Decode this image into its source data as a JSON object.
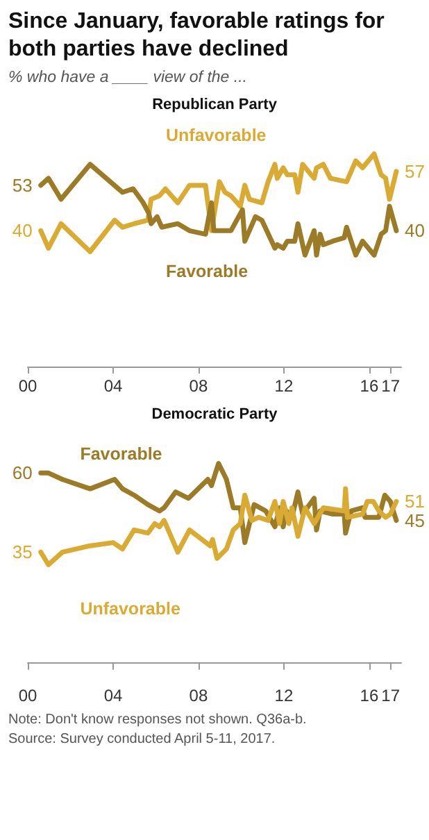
{
  "chart_data": [
    {
      "type": "line",
      "title": "Since January, favorable ratings for both parties have declined",
      "subtitle": "% who have a ____ view of the ...",
      "annotations": [
        "Republican Party"
      ],
      "xlim": [
        2000,
        2017.5
      ],
      "xticks": [
        {
          "value": 2000,
          "label": "00"
        },
        {
          "value": 2004,
          "label": "04"
        },
        {
          "value": 2008,
          "label": "08"
        },
        {
          "value": 2012,
          "label": "12"
        },
        {
          "value": 2016,
          "label": "16"
        },
        {
          "value": 2017,
          "label": "17"
        }
      ],
      "tick_labels": "x",
      "series": [
        {
          "name": "Unfavorable",
          "color": "#d9ab35",
          "x": [
            2000.61,
            2000.97,
            2001.56,
            2002.92,
            2004.07,
            2004.44,
            2004.98,
            2005.63,
            2005.78,
            2006.17,
            2006.45,
            2007.03,
            2007.58,
            2008.33,
            2008.61,
            2008.98,
            2009.24,
            2009.52,
            2009.96,
            2010.17,
            2010.39,
            2010.97,
            2011.26,
            2011.58,
            2011.69,
            2011.97,
            2012.16,
            2012.51,
            2012.66,
            2012.88,
            2013.42,
            2013.53,
            2013.85,
            2014.18,
            2014.94,
            2015.37,
            2015.69,
            2016.23,
            2016.56,
            2016.77,
            2016.95,
            2017.27
          ],
          "values": [
            40,
            35,
            42,
            34,
            43,
            41,
            42,
            43,
            49,
            50,
            52,
            48,
            53,
            53,
            40,
            54,
            51,
            50,
            47,
            53,
            49,
            48,
            54,
            59,
            55,
            58,
            56,
            56,
            51,
            59,
            55,
            58,
            59,
            55,
            54,
            60,
            58,
            62,
            56,
            55,
            49,
            57
          ],
          "value_labels": [
            "40",
            null,
            null,
            null,
            null,
            null,
            null,
            null,
            null,
            null,
            null,
            null,
            null,
            null,
            null,
            null,
            null,
            null,
            null,
            null,
            null,
            null,
            null,
            null,
            null,
            null,
            null,
            null,
            null,
            null,
            null,
            null,
            null,
            null,
            null,
            null,
            null,
            null,
            null,
            null,
            null,
            "57"
          ]
        },
        {
          "name": "Favorable",
          "color": "#9b7b28",
          "x": [
            2000.61,
            2000.97,
            2001.56,
            2002.92,
            2004.44,
            2004.94,
            2005.41,
            2005.67,
            2005.78,
            2006.06,
            2006.28,
            2007.03,
            2007.58,
            2008.33,
            2008.61,
            2008.72,
            2009.52,
            2010.06,
            2010.17,
            2010.67,
            2010.97,
            2011.58,
            2011.69,
            2011.97,
            2012.16,
            2012.51,
            2012.66,
            2012.99,
            2013.42,
            2013.53,
            2013.7,
            2013.85,
            2014.29,
            2014.83,
            2014.94,
            2015.37,
            2015.69,
            2016.23,
            2016.56,
            2016.77,
            2016.95,
            2017.27
          ],
          "values": [
            53,
            55,
            49,
            59,
            51,
            52,
            48,
            45,
            42,
            44,
            41,
            42,
            40,
            39,
            48,
            40,
            40,
            46,
            37,
            44,
            43,
            35,
            36,
            35,
            37,
            37,
            42,
            33,
            40,
            33,
            39,
            36,
            37,
            38,
            41,
            33,
            37,
            33,
            39,
            40,
            47,
            40
          ],
          "value_labels": [
            "53",
            null,
            null,
            null,
            null,
            null,
            null,
            null,
            null,
            null,
            null,
            null,
            null,
            null,
            null,
            null,
            null,
            null,
            null,
            null,
            null,
            null,
            null,
            null,
            null,
            null,
            null,
            null,
            null,
            null,
            null,
            null,
            null,
            null,
            null,
            null,
            null,
            null,
            null,
            null,
            null,
            "40"
          ]
        }
      ]
    },
    {
      "type": "line",
      "title": "Democratic Party",
      "annotations": [
        "Note: Don't know responses not shown. Q36a-b.",
        "Source: Survey conducted April 5-11, 2017."
      ],
      "xlim": [
        2000,
        2017.5
      ],
      "xticks": [
        {
          "value": 2000,
          "label": "00"
        },
        {
          "value": 2004,
          "label": "04"
        },
        {
          "value": 2008,
          "label": "08"
        },
        {
          "value": 2012,
          "label": "12"
        },
        {
          "value": 2016,
          "label": "16"
        },
        {
          "value": 2017,
          "label": "17"
        }
      ],
      "tick_labels": "x",
      "series": [
        {
          "name": "Favorable",
          "color": "#9b7b28",
          "x": [
            2000.61,
            2000.97,
            2001.62,
            2002.92,
            2004.07,
            2004.44,
            2004.98,
            2005.63,
            2006.17,
            2006.39,
            2006.93,
            2007.53,
            2008.44,
            2008.61,
            2008.94,
            2009.31,
            2009.63,
            2009.96,
            2010.17,
            2010.61,
            2011.15,
            2011.58,
            2011.8,
            2011.97,
            2012.12,
            2012.38,
            2012.66,
            2012.88,
            2013.42,
            2013.53,
            2013.7,
            2014.29,
            2014.83,
            2014.89,
            2015.15,
            2015.69,
            2015.8,
            2016.45,
            2016.73,
            2016.99,
            2017.27
          ],
          "values": [
            60,
            60,
            58,
            55,
            58,
            55,
            53,
            50,
            48,
            49,
            54,
            52,
            58,
            56,
            63,
            58,
            49,
            49,
            38,
            50,
            48,
            43,
            49,
            43,
            48,
            46,
            54,
            47,
            52,
            42,
            48,
            47,
            47,
            41,
            48,
            49,
            46,
            46,
            53,
            51,
            45
          ],
          "value_labels": [
            "60",
            null,
            null,
            null,
            null,
            null,
            null,
            null,
            null,
            null,
            null,
            null,
            null,
            null,
            null,
            null,
            null,
            null,
            null,
            null,
            null,
            null,
            null,
            null,
            null,
            null,
            null,
            null,
            null,
            null,
            null,
            null,
            null,
            null,
            null,
            null,
            null,
            null,
            null,
            null,
            "45"
          ]
        },
        {
          "name": "Unfavorable",
          "color": "#d9ab35",
          "x": [
            2000.61,
            2000.97,
            2001.62,
            2002.92,
            2004.0,
            2004.44,
            2004.98,
            2005.63,
            2005.95,
            2006.17,
            2006.39,
            2007.03,
            2007.58,
            2008.55,
            2008.66,
            2008.87,
            2009.31,
            2009.63,
            2009.96,
            2010.17,
            2010.5,
            2010.82,
            2011.26,
            2011.58,
            2011.8,
            2011.97,
            2012.23,
            2012.38,
            2012.66,
            2012.99,
            2013.42,
            2013.85,
            2014.83,
            2014.89,
            2014.98,
            2015.69,
            2015.91,
            2016.19,
            2016.45,
            2016.77,
            2016.99,
            2017.27
          ],
          "values": [
            35,
            31,
            35,
            37,
            38,
            36,
            42,
            41,
            44,
            43,
            45,
            35,
            42,
            37,
            39,
            33,
            36,
            42,
            44,
            53,
            45,
            46,
            45,
            51,
            44,
            51,
            44,
            49,
            40,
            49,
            44,
            49,
            48,
            55,
            46,
            47,
            51,
            51,
            48,
            46,
            47,
            51
          ],
          "value_labels": [
            "35",
            null,
            null,
            null,
            null,
            null,
            null,
            null,
            null,
            null,
            null,
            null,
            null,
            null,
            null,
            null,
            null,
            null,
            null,
            null,
            null,
            null,
            null,
            null,
            null,
            null,
            null,
            null,
            null,
            null,
            null,
            null,
            null,
            null,
            null,
            null,
            null,
            null,
            null,
            null,
            null,
            "51"
          ]
        }
      ]
    }
  ]
}
